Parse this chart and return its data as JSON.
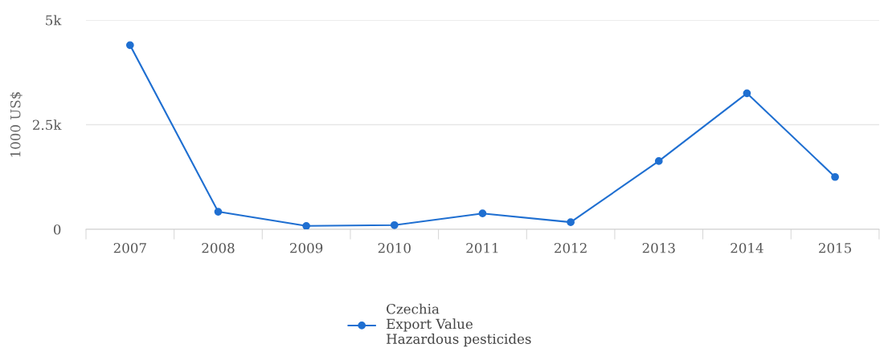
{
  "chart_data": {
    "type": "line",
    "ylabel": "1000 US$",
    "categories": [
      "2007",
      "2008",
      "2009",
      "2010",
      "2011",
      "2012",
      "2013",
      "2014",
      "2015"
    ],
    "series": [
      {
        "name": "Czechia\nExport Value\nHazardous pesticides",
        "color": "#1f6fd1",
        "values": [
          4400,
          420,
          80,
          100,
          380,
          170,
          1630,
          3250,
          1250
        ]
      }
    ],
    "ylim": [
      0,
      5000
    ],
    "yticks": [
      0,
      {
        "value": 2500,
        "label": "2.5k"
      },
      {
        "value": 5000,
        "label": "5k"
      }
    ],
    "grid": "y",
    "legend": "bottom",
    "marker": "circle",
    "line_style": "solid"
  }
}
